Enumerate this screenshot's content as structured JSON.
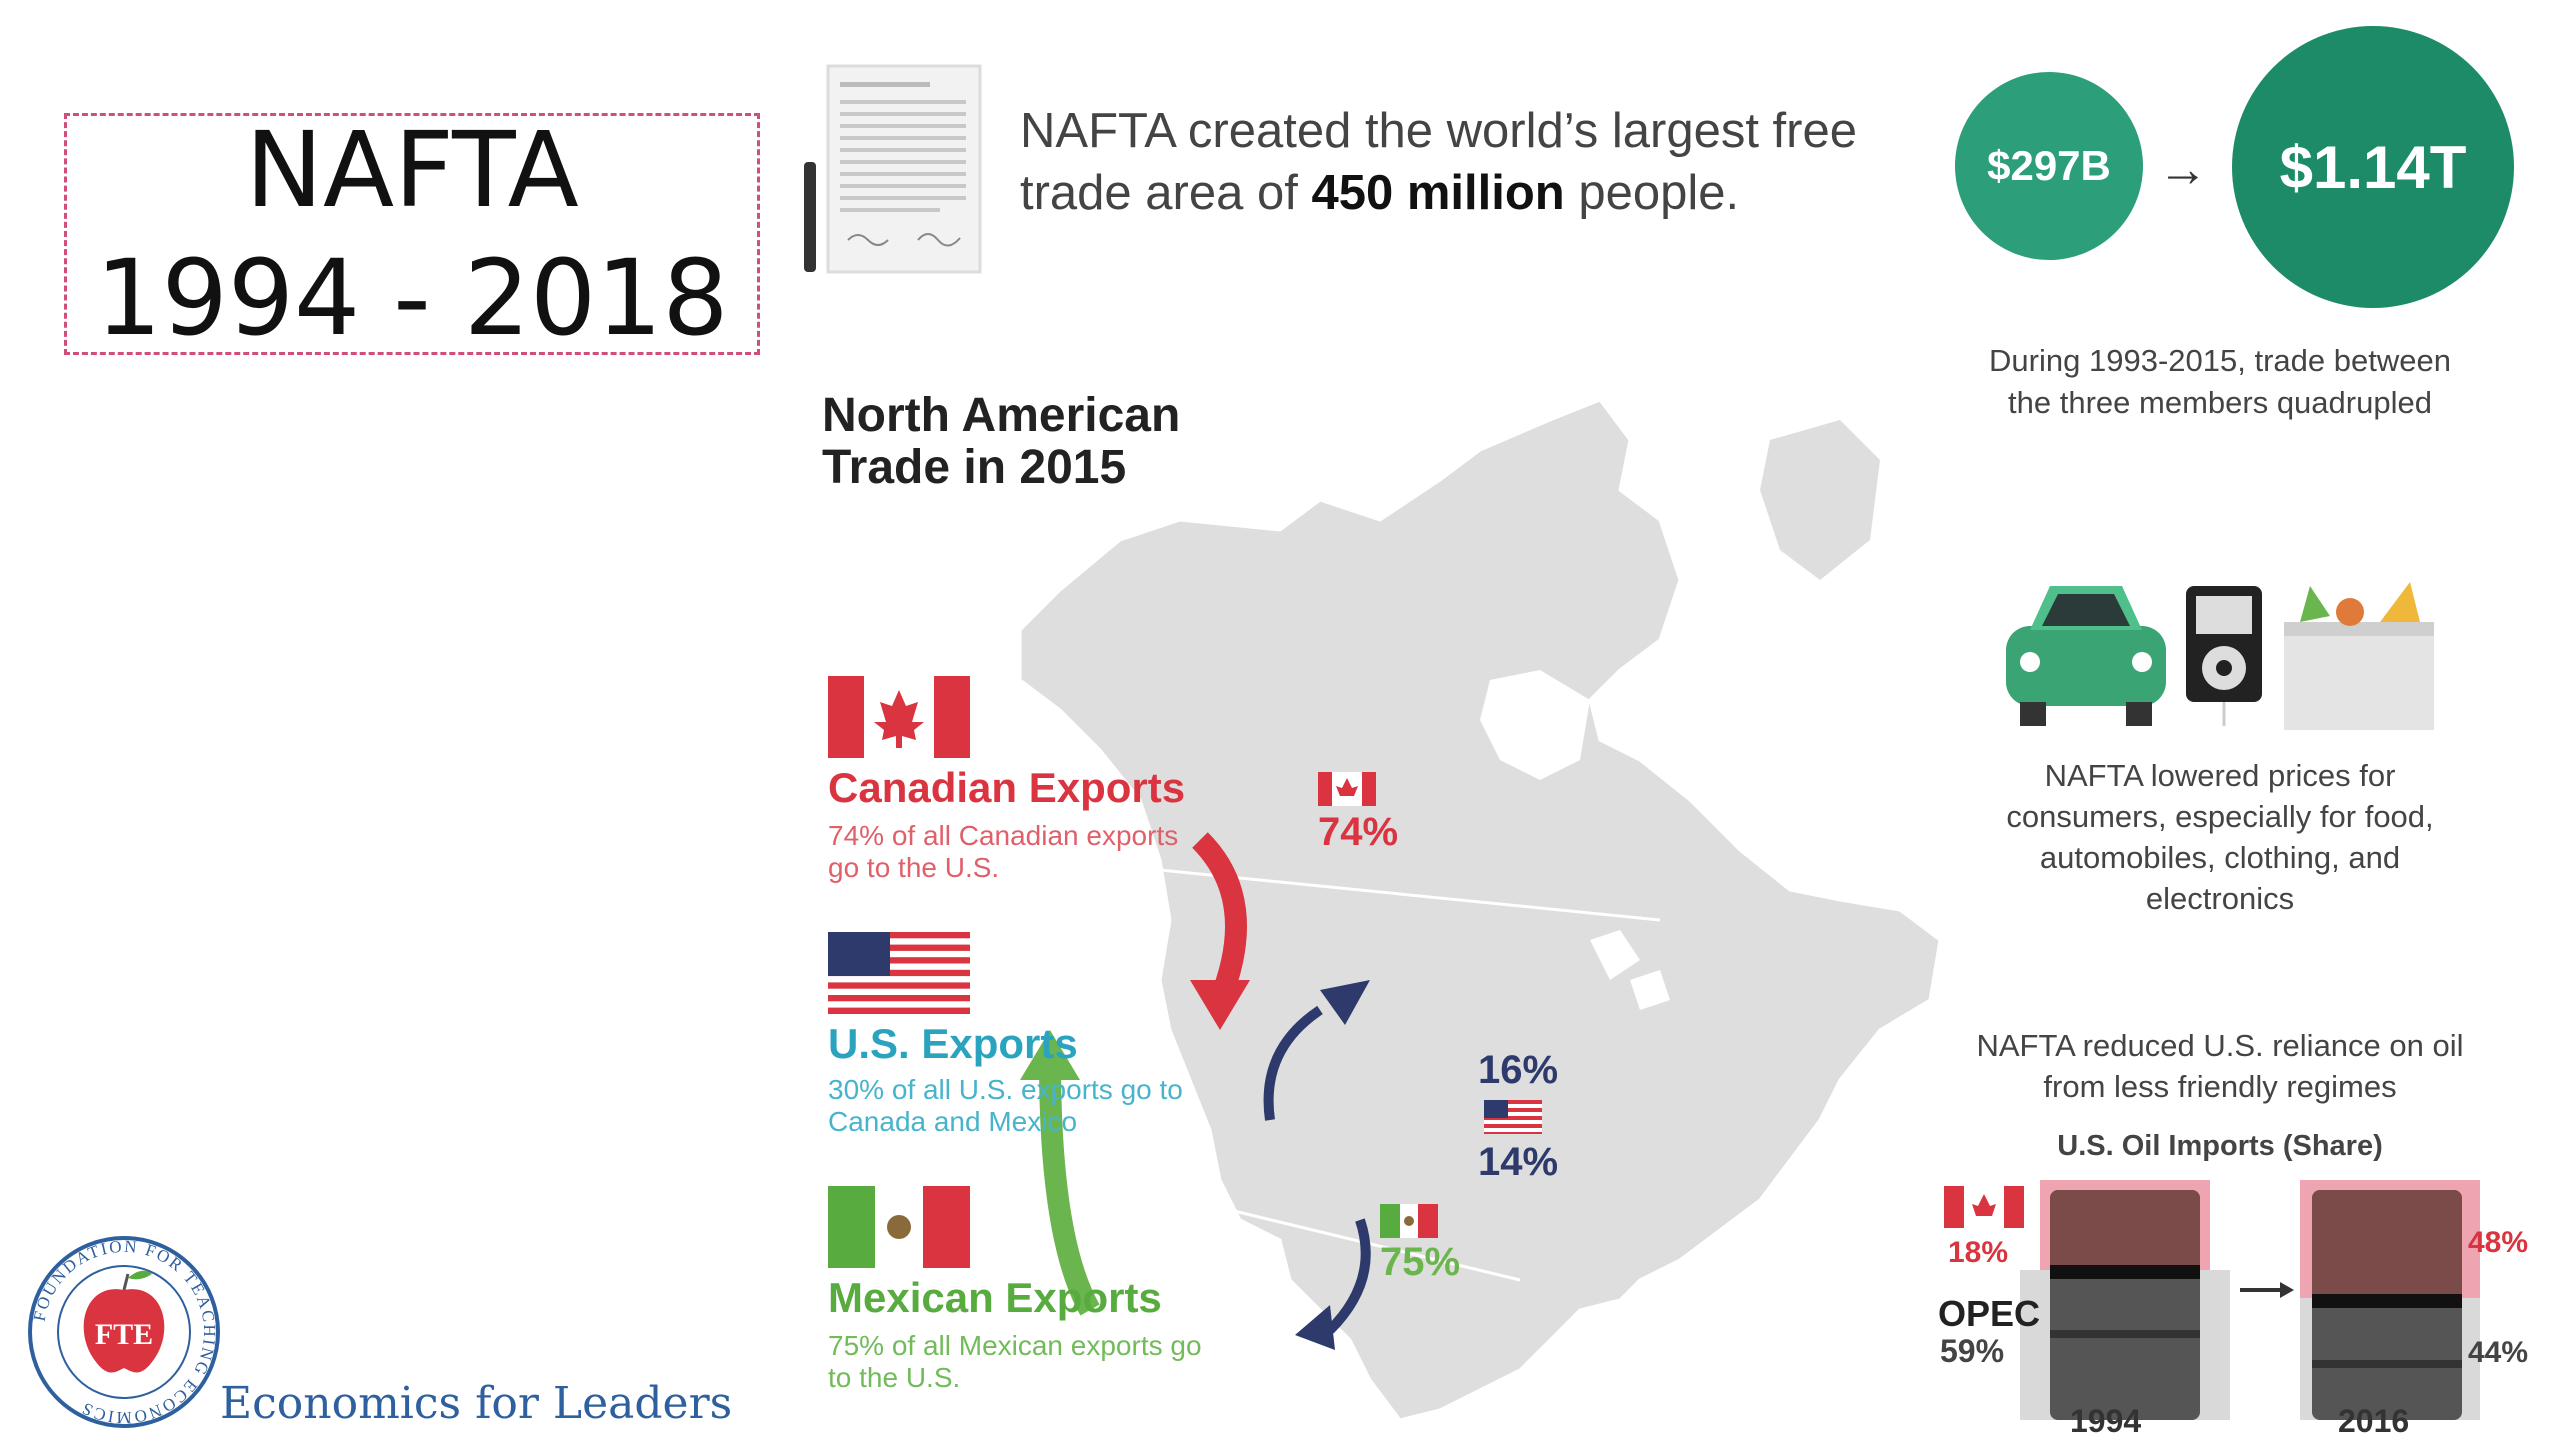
{
  "slide": {
    "title_line1": "NAFTA",
    "title_line2": "1994 - 2018"
  },
  "headline": {
    "text_before": "NAFTA created the world’s largest free trade area of ",
    "bold": "450 million",
    "text_after": " people."
  },
  "trade_growth": {
    "from_value": "$297B",
    "arrow": "→",
    "to_value": "$1.14T",
    "note": "During 1993-2015, trade between the three members quadrupled"
  },
  "map": {
    "title_line1": "North American",
    "title_line2": "Trade in 2015",
    "canada_pct": "74%",
    "us_pct_canada": "16%",
    "us_pct_mexico": "14%",
    "mexico_pct": "75%"
  },
  "exports": {
    "canada": {
      "title": "Canadian Exports",
      "description": "74% of all Canadian exports go to the U.S."
    },
    "us": {
      "title": "U.S. Exports",
      "description": "30% of all U.S. exports go to Canada and Mexico"
    },
    "mexico": {
      "title": "Mexican Exports",
      "description": "75% of all Mexican exports go to the U.S."
    }
  },
  "prices_note": "NAFTA lowered prices for consumers, especially for food, automobiles, clothing, and electronics",
  "oil": {
    "note": "NAFTA reduced U.S. reliance on oil from less friendly regimes",
    "chart_title": "U.S. Oil Imports (Share)",
    "canada_1994": "18%",
    "opec_label": "OPEC",
    "opec_1994": "59%",
    "canada_2016": "48%",
    "opec_2016": "44%",
    "year_1": "1994",
    "year_2": "2016"
  },
  "logo": {
    "initials": "FTE",
    "ring_text": "FOUNDATION FOR TEACHING ECONOMICS",
    "tagline": "Economics for Leaders"
  },
  "colors": {
    "canada_red": "#d9343f",
    "us_blue": "#2aa3bf",
    "mexico_green": "#58ab3e",
    "teal": "#2c9e7a",
    "navy_arrow": "#2d3a6b",
    "dashed_border": "#d14d7a"
  }
}
